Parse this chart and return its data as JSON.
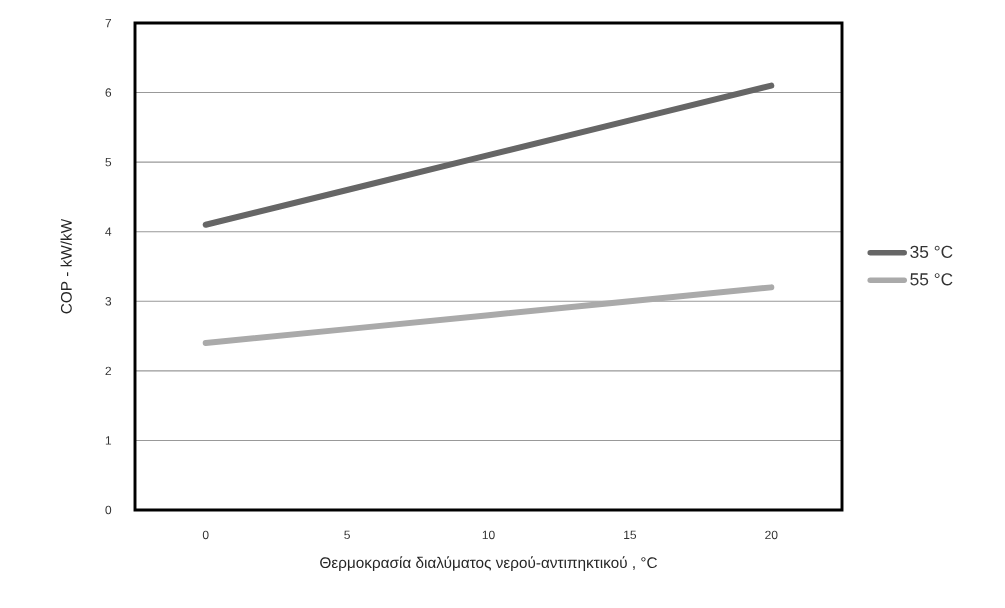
{
  "chart_data": {
    "type": "line",
    "xlabel": "Θερμοκρασία διαλύματος νερού-αντιπηκτικού , °C",
    "ylabel": "COP - kW/kW",
    "x": [
      0,
      5,
      10,
      15,
      20
    ],
    "series": [
      {
        "name": "35 °C",
        "color": "#666666",
        "values": [
          4.1,
          4.6,
          5.1,
          5.6,
          6.1
        ]
      },
      {
        "name": "55 °C",
        "color": "#aaaaaa",
        "values": [
          2.4,
          2.6,
          2.8,
          3.0,
          3.2
        ]
      }
    ],
    "xlim": [
      -2.5,
      22.5
    ],
    "ylim": [
      0,
      7
    ],
    "xticks": [
      0,
      5,
      10,
      15,
      20
    ],
    "yticks": [
      0,
      1,
      2,
      3,
      4,
      5,
      6,
      7
    ],
    "grid": "y",
    "legend": "right"
  }
}
